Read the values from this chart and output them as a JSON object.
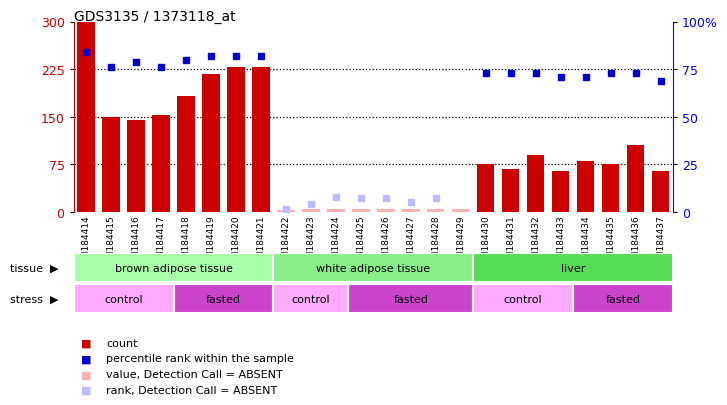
{
  "title": "GDS3135 / 1373118_at",
  "samples": [
    "GSM184414",
    "GSM184415",
    "GSM184416",
    "GSM184417",
    "GSM184418",
    "GSM184419",
    "GSM184420",
    "GSM184421",
    "GSM184422",
    "GSM184423",
    "GSM184424",
    "GSM184425",
    "GSM184426",
    "GSM184427",
    "GSM184428",
    "GSM184429",
    "GSM184430",
    "GSM184431",
    "GSM184432",
    "GSM184433",
    "GSM184434",
    "GSM184435",
    "GSM184436",
    "GSM184437"
  ],
  "count_vals": [
    300,
    150,
    145,
    152,
    183,
    218,
    228,
    228,
    3,
    4,
    4,
    4,
    4,
    4,
    4,
    4,
    75,
    68,
    90,
    65,
    80,
    75,
    105,
    65
  ],
  "count_absent": [
    false,
    false,
    false,
    false,
    false,
    false,
    false,
    false,
    true,
    true,
    true,
    true,
    true,
    true,
    true,
    true,
    false,
    false,
    false,
    false,
    false,
    false,
    false,
    false
  ],
  "pct_present": [
    84,
    76,
    79,
    76,
    80,
    82,
    82,
    82,
    null,
    null,
    null,
    null,
    null,
    null,
    null,
    null,
    73,
    73,
    73,
    71,
    71,
    73,
    73,
    69
  ],
  "rank_absent_pct": [
    null,
    null,
    null,
    null,
    null,
    null,
    null,
    null,
    1.7,
    4.3,
    8.0,
    7.3,
    7.3,
    5.0,
    7.3,
    null,
    null,
    null,
    null,
    null,
    null,
    null,
    null,
    null
  ],
  "tissue_groups": [
    {
      "label": "brown adipose tissue",
      "start": 0,
      "end": 8,
      "color": "#90EE90"
    },
    {
      "label": "white adipose tissue",
      "start": 8,
      "end": 16,
      "color": "#90EE90"
    },
    {
      "label": "liver",
      "start": 16,
      "end": 24,
      "color": "#90EE90"
    }
  ],
  "stress_groups": [
    {
      "label": "control",
      "start": 0,
      "end": 4,
      "color": "#FF99FF"
    },
    {
      "label": "fasted",
      "start": 4,
      "end": 8,
      "color": "#DD44DD"
    },
    {
      "label": "control",
      "start": 8,
      "end": 11,
      "color": "#FF99FF"
    },
    {
      "label": "fasted",
      "start": 11,
      "end": 16,
      "color": "#DD44DD"
    },
    {
      "label": "control",
      "start": 16,
      "end": 20,
      "color": "#FF99FF"
    },
    {
      "label": "fasted",
      "start": 20,
      "end": 24,
      "color": "#DD44DD"
    }
  ],
  "bar_color": "#CC0000",
  "bar_absent_color": "#FFB0B0",
  "dot_color": "#0000CC",
  "rank_absent_color": "#BBBBFF",
  "bg_plot": "#E8E8E8",
  "tissue_lighter": "#AAFFAA",
  "tissue_darker": "#66DD66"
}
